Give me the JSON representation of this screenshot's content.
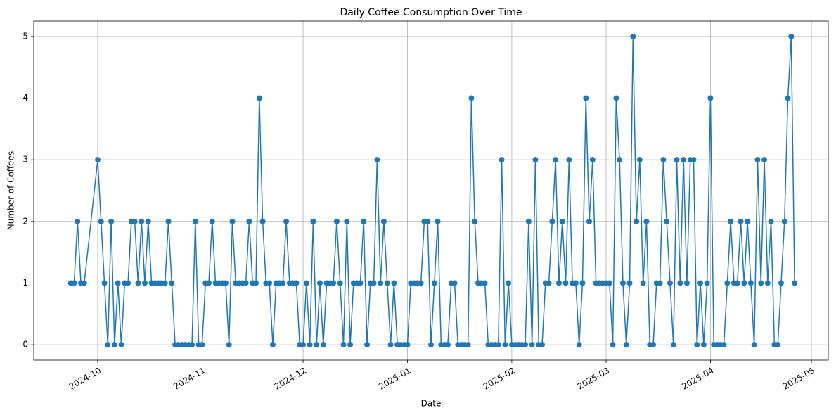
{
  "chart_data": {
    "type": "line",
    "title": "Daily Coffee Consumption Over Time",
    "xlabel": "Date",
    "ylabel": "Number of Coffees",
    "x": [
      "2024-09-23",
      "2024-09-24",
      "2024-09-25",
      "2024-09-26",
      "2024-09-27",
      "2024-10-01",
      "2024-10-02",
      "2024-10-03",
      "2024-10-04",
      "2024-10-05",
      "2024-10-06",
      "2024-10-07",
      "2024-10-08",
      "2024-10-09",
      "2024-10-10",
      "2024-10-11",
      "2024-10-12",
      "2024-10-13",
      "2024-10-14",
      "2024-10-15",
      "2024-10-16",
      "2024-10-17",
      "2024-10-18",
      "2024-10-19",
      "2024-10-20",
      "2024-10-21",
      "2024-10-22",
      "2024-10-23",
      "2024-10-24",
      "2024-10-25",
      "2024-10-26",
      "2024-10-27",
      "2024-10-28",
      "2024-10-29",
      "2024-10-30",
      "2024-10-31",
      "2024-11-01",
      "2024-11-02",
      "2024-11-03",
      "2024-11-04",
      "2024-11-05",
      "2024-11-06",
      "2024-11-07",
      "2024-11-08",
      "2024-11-09",
      "2024-11-10",
      "2024-11-11",
      "2024-11-12",
      "2024-11-13",
      "2024-11-14",
      "2024-11-15",
      "2024-11-16",
      "2024-11-17",
      "2024-11-18",
      "2024-11-19",
      "2024-11-20",
      "2024-11-21",
      "2024-11-22",
      "2024-11-23",
      "2024-11-24",
      "2024-11-25",
      "2024-11-26",
      "2024-11-27",
      "2024-11-28",
      "2024-11-29",
      "2024-11-30",
      "2024-12-01",
      "2024-12-02",
      "2024-12-03",
      "2024-12-04",
      "2024-12-05",
      "2024-12-06",
      "2024-12-07",
      "2024-12-08",
      "2024-12-09",
      "2024-12-10",
      "2024-12-11",
      "2024-12-12",
      "2024-12-13",
      "2024-12-14",
      "2024-12-15",
      "2024-12-16",
      "2024-12-17",
      "2024-12-18",
      "2024-12-19",
      "2024-12-20",
      "2024-12-21",
      "2024-12-22",
      "2024-12-23",
      "2024-12-24",
      "2024-12-25",
      "2024-12-26",
      "2024-12-27",
      "2024-12-28",
      "2024-12-29",
      "2024-12-30",
      "2024-12-31",
      "2025-01-01",
      "2025-01-02",
      "2025-01-03",
      "2025-01-04",
      "2025-01-05",
      "2025-01-06",
      "2025-01-07",
      "2025-01-08",
      "2025-01-09",
      "2025-01-10",
      "2025-01-11",
      "2025-01-12",
      "2025-01-13",
      "2025-01-14",
      "2025-01-15",
      "2025-01-16",
      "2025-01-17",
      "2025-01-18",
      "2025-01-19",
      "2025-01-20",
      "2025-01-21",
      "2025-01-22",
      "2025-01-23",
      "2025-01-24",
      "2025-01-25",
      "2025-01-26",
      "2025-01-27",
      "2025-01-28",
      "2025-01-29",
      "2025-01-30",
      "2025-01-31",
      "2025-02-01",
      "2025-02-02",
      "2025-02-03",
      "2025-02-04",
      "2025-02-05",
      "2025-02-06",
      "2025-02-07",
      "2025-02-08",
      "2025-02-09",
      "2025-02-10",
      "2025-02-11",
      "2025-02-12",
      "2025-02-13",
      "2025-02-14",
      "2025-02-15",
      "2025-02-16",
      "2025-02-17",
      "2025-02-18",
      "2025-02-19",
      "2025-02-20",
      "2025-02-21",
      "2025-02-22",
      "2025-02-23",
      "2025-02-24",
      "2025-02-25",
      "2025-02-26",
      "2025-02-27",
      "2025-02-28",
      "2025-03-01",
      "2025-03-02",
      "2025-03-03",
      "2025-03-04",
      "2025-03-05",
      "2025-03-06",
      "2025-03-07",
      "2025-03-08",
      "2025-03-09",
      "2025-03-10",
      "2025-03-11",
      "2025-03-12",
      "2025-03-13",
      "2025-03-14",
      "2025-03-15",
      "2025-03-16",
      "2025-03-17",
      "2025-03-18",
      "2025-03-19",
      "2025-03-20",
      "2025-03-21",
      "2025-03-22",
      "2025-03-23",
      "2025-03-24",
      "2025-03-25",
      "2025-03-26",
      "2025-03-27",
      "2025-03-28",
      "2025-03-29",
      "2025-03-30",
      "2025-03-31",
      "2025-04-01",
      "2025-04-02",
      "2025-04-03",
      "2025-04-04",
      "2025-04-05",
      "2025-04-06",
      "2025-04-07",
      "2025-04-08",
      "2025-04-09",
      "2025-04-10",
      "2025-04-11",
      "2025-04-12",
      "2025-04-13",
      "2025-04-14",
      "2025-04-15",
      "2025-04-16",
      "2025-04-17",
      "2025-04-18",
      "2025-04-19",
      "2025-04-20",
      "2025-04-21",
      "2025-04-22",
      "2025-04-23",
      "2025-04-24",
      "2025-04-25",
      "2025-04-26"
    ],
    "series": [
      {
        "name": "Coffees",
        "color": "#1f77b4",
        "values": [
          1,
          1,
          2,
          1,
          1,
          3,
          2,
          1,
          0,
          2,
          0,
          1,
          0,
          1,
          1,
          2,
          2,
          1,
          2,
          1,
          2,
          1,
          1,
          1,
          1,
          1,
          2,
          1,
          0,
          0,
          0,
          0,
          0,
          0,
          2,
          0,
          0,
          1,
          1,
          2,
          1,
          1,
          1,
          1,
          0,
          2,
          1,
          1,
          1,
          1,
          2,
          1,
          1,
          4,
          2,
          1,
          1,
          0,
          1,
          1,
          1,
          2,
          1,
          1,
          1,
          0,
          0,
          1,
          0,
          2,
          0,
          1,
          0,
          1,
          1,
          1,
          2,
          1,
          0,
          2,
          0,
          1,
          1,
          1,
          2,
          0,
          1,
          1,
          3,
          1,
          2,
          1,
          0,
          1,
          0,
          0,
          0,
          0,
          1,
          1,
          1,
          1,
          2,
          2,
          0,
          1,
          2,
          0,
          0,
          0,
          1,
          1,
          0,
          0,
          0,
          0,
          4,
          2,
          1,
          1,
          1,
          0,
          0,
          0,
          0,
          3,
          0,
          1,
          0,
          0,
          0,
          0,
          0,
          2,
          0,
          3,
          0,
          0,
          1,
          1,
          2,
          3,
          1,
          2,
          1,
          3,
          1,
          1,
          0,
          1,
          4,
          2,
          3,
          1,
          1,
          1,
          1,
          1,
          0,
          4,
          3,
          1,
          0,
          1,
          5,
          2,
          3,
          1,
          2,
          0,
          0,
          1,
          1,
          3,
          2,
          1,
          0,
          3,
          1,
          3,
          1,
          3,
          3,
          0,
          1,
          0,
          1,
          4,
          0,
          0,
          0,
          0,
          1,
          2,
          1,
          1,
          2,
          1,
          2,
          1,
          0,
          3,
          1,
          3,
          1,
          2,
          0,
          0,
          1,
          2,
          4,
          5,
          1
        ]
      }
    ],
    "xlim": [
      "2024-09-12",
      "2025-05-06"
    ],
    "xticks": [
      {
        "value": "2024-10-01",
        "label": "2024-10"
      },
      {
        "value": "2024-11-01",
        "label": "2024-11"
      },
      {
        "value": "2024-12-01",
        "label": "2024-12"
      },
      {
        "value": "2025-01-01",
        "label": "2025-01"
      },
      {
        "value": "2025-02-01",
        "label": "2025-02"
      },
      {
        "value": "2025-03-01",
        "label": "2025-03"
      },
      {
        "value": "2025-04-01",
        "label": "2025-04"
      },
      {
        "value": "2025-05-01",
        "label": "2025-05"
      }
    ],
    "ylim": [
      -0.25,
      5.25
    ],
    "yticks": [
      0,
      1,
      2,
      3,
      4,
      5
    ],
    "grid": true
  }
}
